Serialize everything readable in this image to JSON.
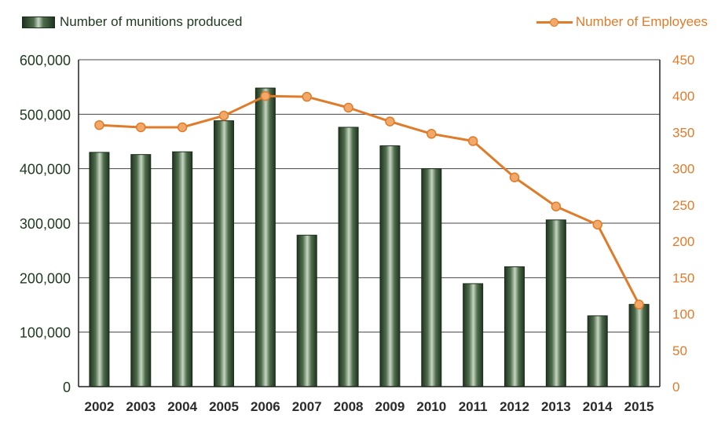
{
  "legend": {
    "bars_label": "Number of munitions produced",
    "line_label": "Number of Employees"
  },
  "colors": {
    "bar_dark": "#1f3320",
    "bar_mid": "#4f6e4c",
    "bar_light": "#c7d6c3",
    "line": "#e07b2a",
    "line_marker": "#f2a868",
    "left_axis_text": "#1e3a1e",
    "right_axis_text": "#e07b2a",
    "grid": "#444444"
  },
  "chart_data": {
    "type": "bar",
    "categories": [
      "2002",
      "2003",
      "2004",
      "2005",
      "2006",
      "2007",
      "2008",
      "2009",
      "2010",
      "2011",
      "2012",
      "2013",
      "2014",
      "2015"
    ],
    "series": [
      {
        "name": "Number of munitions produced",
        "type": "bar",
        "axis": "left",
        "values": [
          430000,
          426000,
          431000,
          488000,
          548000,
          278000,
          476000,
          442000,
          400000,
          189000,
          220000,
          306000,
          130000,
          151000
        ]
      },
      {
        "name": "Number of Employees",
        "type": "line",
        "axis": "right",
        "values": [
          360,
          357,
          357,
          373,
          400,
          399,
          384,
          365,
          348,
          338,
          288,
          248,
          223,
          113
        ]
      }
    ],
    "y_left": {
      "lim": [
        0,
        600000
      ],
      "ticks": [
        0,
        100000,
        200000,
        300000,
        400000,
        500000,
        600000
      ],
      "tick_labels": [
        "0",
        "100,000",
        "200,000",
        "300,000",
        "400,000",
        "500,000",
        "600,000"
      ]
    },
    "y_right": {
      "lim": [
        0,
        450
      ],
      "ticks": [
        0,
        50,
        100,
        150,
        200,
        250,
        300,
        350,
        400,
        450
      ],
      "tick_labels": [
        "0",
        "50",
        "100",
        "150",
        "200",
        "250",
        "300",
        "350",
        "400",
        "450"
      ]
    },
    "grid": true,
    "legend_position": "top"
  }
}
